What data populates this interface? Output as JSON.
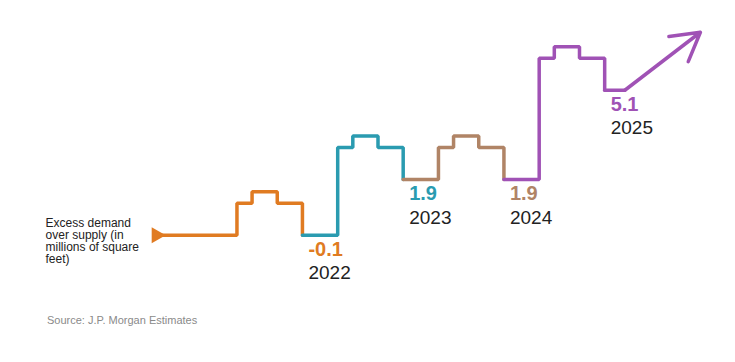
{
  "chart_data": {
    "type": "line",
    "ylabel": "Excess demand over supply (in millions of square feet)",
    "categories": [
      "2022",
      "2023",
      "2024",
      "2025"
    ],
    "values": [
      -0.1,
      1.9,
      1.9,
      5.1
    ],
    "colors": [
      "#e07b22",
      "#2a9bb0",
      "#b08466",
      "#a052b5"
    ],
    "data_labels": true,
    "tick_labels": false,
    "source": "Source: J.P. Morgan Estimates"
  }
}
